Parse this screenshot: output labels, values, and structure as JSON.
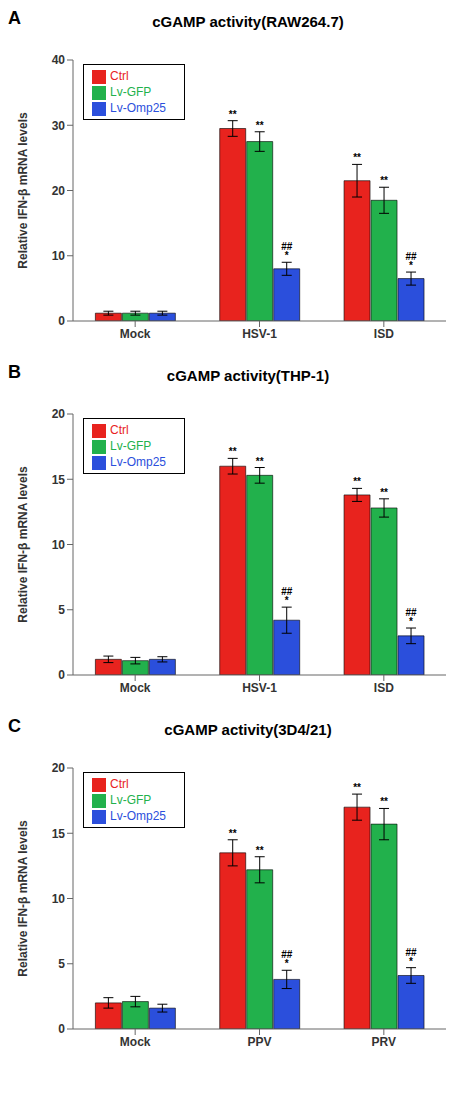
{
  "chart_data": [
    {
      "type": "bar",
      "panel_label": "A",
      "title": "cGAMP activity(RAW264.7)",
      "ylabel": "Relative IFN-β mRNA levels",
      "categories": [
        "Mock",
        "HSV-1",
        "ISD"
      ],
      "ylim": [
        0,
        40
      ],
      "yticks": [
        0,
        10,
        20,
        30,
        40
      ],
      "grid": false,
      "legend": "upper left",
      "series": [
        {
          "name": "Ctrl",
          "color": "#e8231e",
          "values": [
            1.2,
            29.5,
            21.5
          ],
          "errors": [
            0.3,
            1.2,
            2.5
          ],
          "annotations": [
            null,
            "**",
            "**"
          ]
        },
        {
          "name": "Lv-GFP",
          "color": "#22b14c",
          "values": [
            1.2,
            27.5,
            18.5
          ],
          "errors": [
            0.3,
            1.5,
            2.0
          ],
          "annotations": [
            null,
            "**",
            "**"
          ]
        },
        {
          "name": "Lv-Omp25",
          "color": "#2b4fdc",
          "values": [
            1.2,
            8.0,
            6.5
          ],
          "errors": [
            0.3,
            1.0,
            1.0
          ],
          "annotations": [
            null,
            "##*",
            "##*"
          ]
        }
      ]
    },
    {
      "type": "bar",
      "panel_label": "B",
      "title": "cGAMP activity(THP-1)",
      "ylabel": "Relative IFN-β mRNA levels",
      "categories": [
        "Mock",
        "HSV-1",
        "ISD"
      ],
      "ylim": [
        0,
        20
      ],
      "yticks": [
        0,
        5,
        10,
        15,
        20
      ],
      "grid": false,
      "legend": "upper left",
      "series": [
        {
          "name": "Ctrl",
          "color": "#e8231e",
          "values": [
            1.2,
            16.0,
            13.8
          ],
          "errors": [
            0.25,
            0.6,
            0.5
          ],
          "annotations": [
            null,
            "**",
            "**"
          ]
        },
        {
          "name": "Lv-GFP",
          "color": "#22b14c",
          "values": [
            1.1,
            15.3,
            12.8
          ],
          "errors": [
            0.25,
            0.6,
            0.7
          ],
          "annotations": [
            null,
            "**",
            "**"
          ]
        },
        {
          "name": "Lv-Omp25",
          "color": "#2b4fdc",
          "values": [
            1.2,
            4.2,
            3.0
          ],
          "errors": [
            0.2,
            1.0,
            0.6
          ],
          "annotations": [
            null,
            "##*",
            "##*"
          ]
        }
      ]
    },
    {
      "type": "bar",
      "panel_label": "C",
      "title": "cGAMP activity(3D4/21)",
      "ylabel": "Relative IFN-β mRNA levels",
      "categories": [
        "Mock",
        "PPV",
        "PRV"
      ],
      "ylim": [
        0,
        20
      ],
      "yticks": [
        0,
        5,
        10,
        15,
        20
      ],
      "grid": false,
      "legend": "upper left",
      "series": [
        {
          "name": "Ctrl",
          "color": "#e8231e",
          "values": [
            2.0,
            13.5,
            17.0
          ],
          "errors": [
            0.4,
            1.0,
            1.0
          ],
          "annotations": [
            null,
            "**",
            "**"
          ]
        },
        {
          "name": "Lv-GFP",
          "color": "#22b14c",
          "values": [
            2.1,
            12.2,
            15.7
          ],
          "errors": [
            0.4,
            1.0,
            1.2
          ],
          "annotations": [
            null,
            "**",
            "**"
          ]
        },
        {
          "name": "Lv-Omp25",
          "color": "#2b4fdc",
          "values": [
            1.6,
            3.8,
            4.1
          ],
          "errors": [
            0.3,
            0.7,
            0.6
          ],
          "annotations": [
            null,
            "##*",
            "##*"
          ]
        }
      ]
    }
  ]
}
